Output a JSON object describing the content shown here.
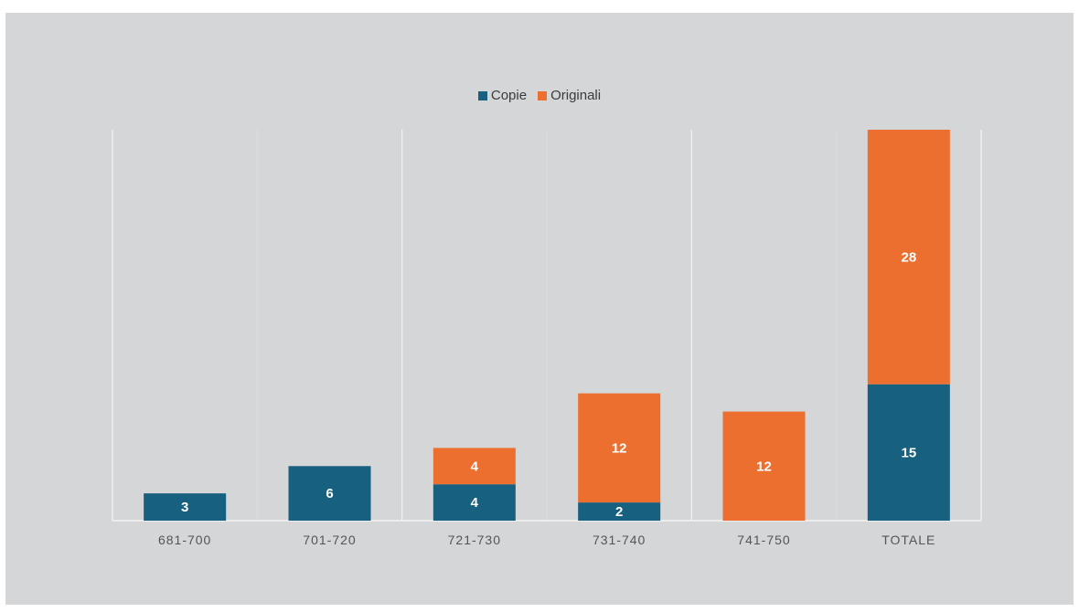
{
  "chart_data": {
    "type": "bar",
    "stacked": true,
    "categories": [
      "681-700",
      "701-720",
      "721-730",
      "731-740",
      "741-750",
      "TOTALE"
    ],
    "series": [
      {
        "name": "Copie",
        "color": "#17607f",
        "values": [
          3,
          6,
          4,
          2,
          0,
          15
        ]
      },
      {
        "name": "Originali",
        "color": "#ec6f30",
        "values": [
          0,
          0,
          4,
          12,
          12,
          28
        ]
      }
    ],
    "title": "",
    "xlabel": "",
    "ylabel": "",
    "ylim": [
      0,
      43
    ],
    "grid": "vertical-category-separators",
    "legend": "top-center"
  }
}
